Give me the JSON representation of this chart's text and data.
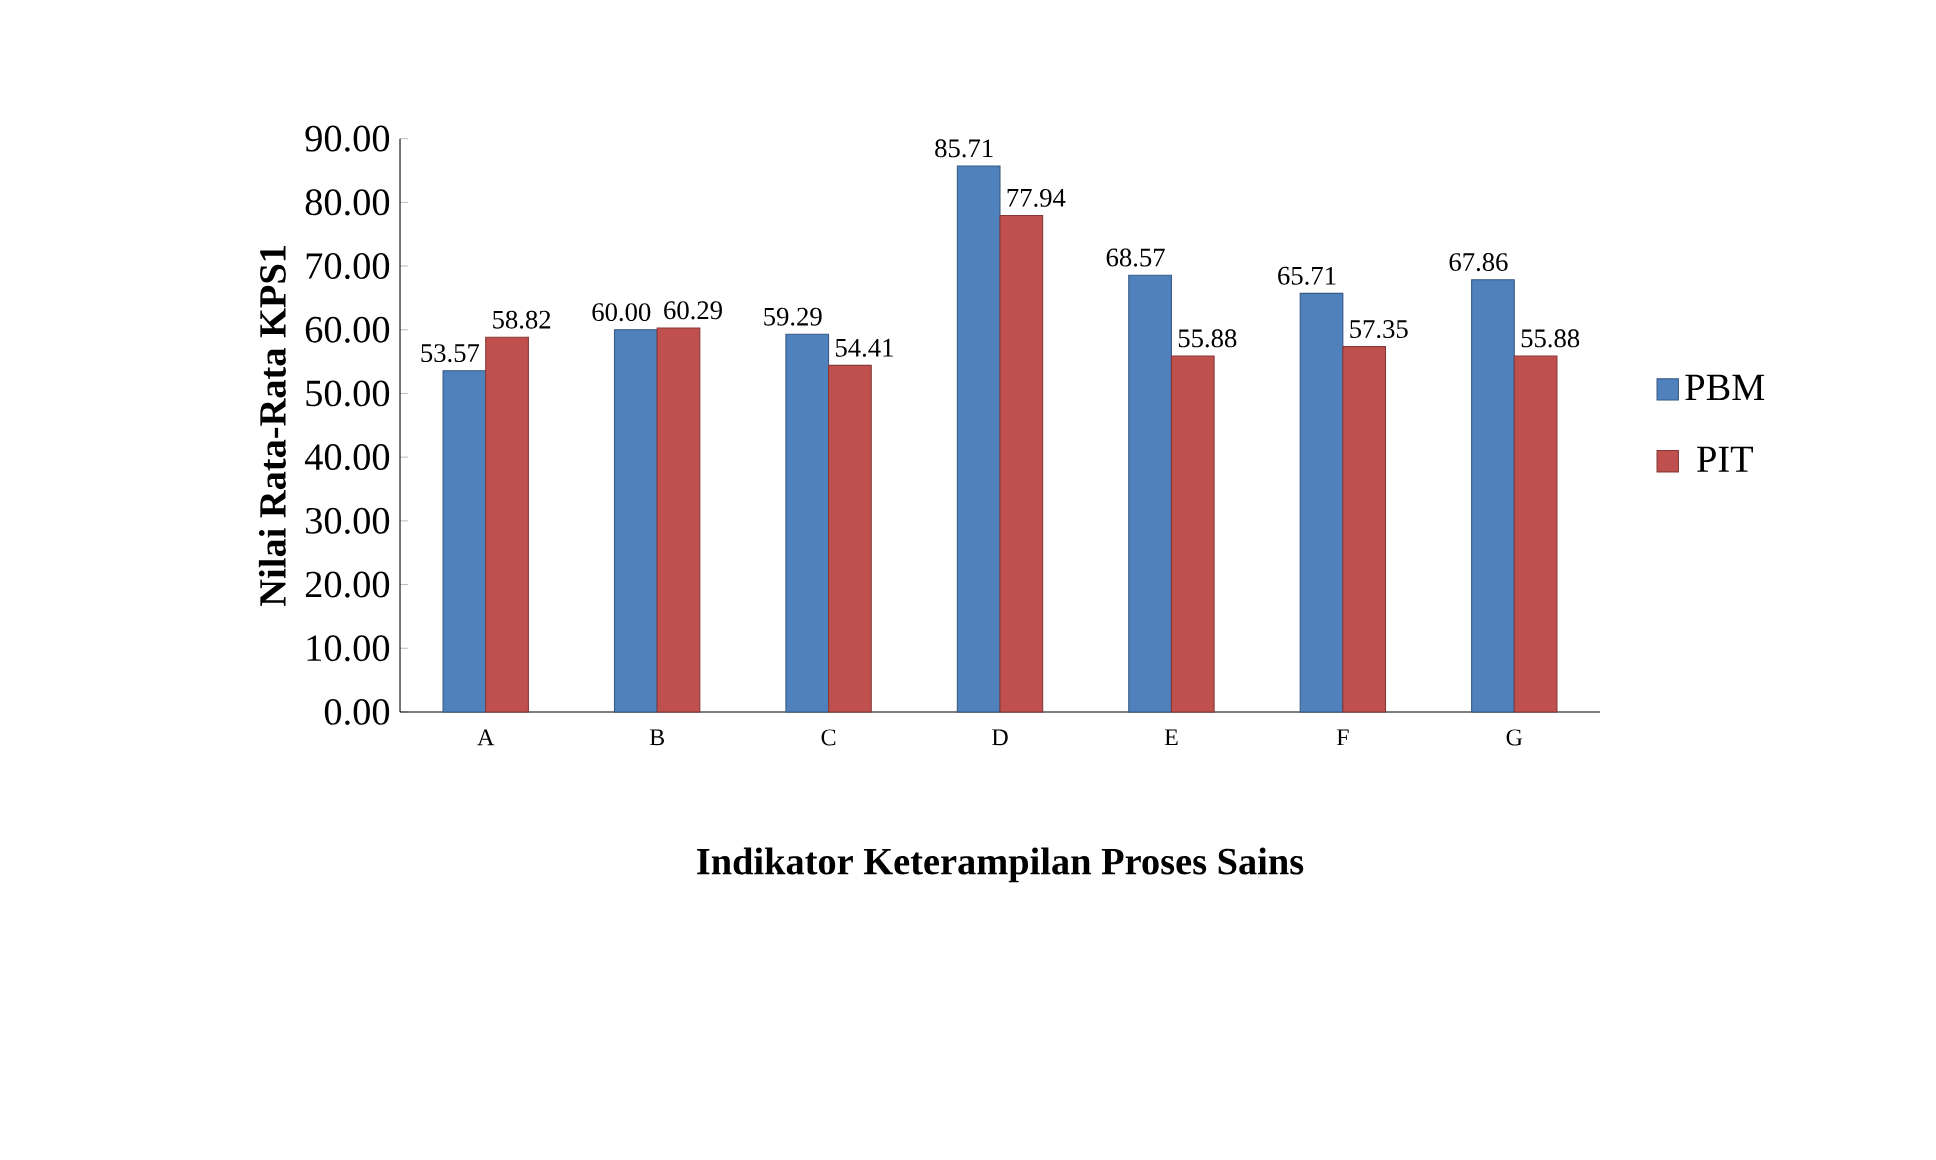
{
  "chart_data": {
    "type": "bar",
    "xlabel": "Indikator  Keterampilan Proses Sains",
    "ylabel": "Nilai Rata-Rata KPS1",
    "categories": [
      "A",
      "B",
      "C",
      "D",
      "E",
      "F",
      "G"
    ],
    "series": [
      {
        "name": "PBM",
        "color": "#4f81bd",
        "values": [
          53.57,
          60.0,
          59.29,
          85.71,
          68.57,
          65.71,
          67.86
        ],
        "value_labels": [
          "53.57",
          "60.00",
          "59.29",
          "85.71",
          "68.57",
          "65.71",
          "67.86"
        ]
      },
      {
        "name": "PIT",
        "color": "#c0504d",
        "values": [
          58.82,
          60.29,
          54.41,
          77.94,
          55.88,
          57.35,
          55.88
        ],
        "value_labels": [
          "58.82",
          "60.29",
          "54.41",
          "77.94",
          "55.88",
          "57.35",
          "55.88"
        ]
      }
    ],
    "ylim": [
      0,
      90
    ],
    "yticks": [
      {
        "value": 0,
        "label": "0.00"
      },
      {
        "value": 10,
        "label": "10.00"
      },
      {
        "value": 20,
        "label": "20.00"
      },
      {
        "value": 30,
        "label": "30.00"
      },
      {
        "value": 40,
        "label": "40.00"
      },
      {
        "value": 50,
        "label": "50.00"
      },
      {
        "value": 60,
        "label": "60.00"
      },
      {
        "value": 70,
        "label": "70.00"
      },
      {
        "value": 80,
        "label": "80.00"
      },
      {
        "value": 90,
        "label": "90.00"
      }
    ],
    "legend": "right",
    "grid": false
  }
}
